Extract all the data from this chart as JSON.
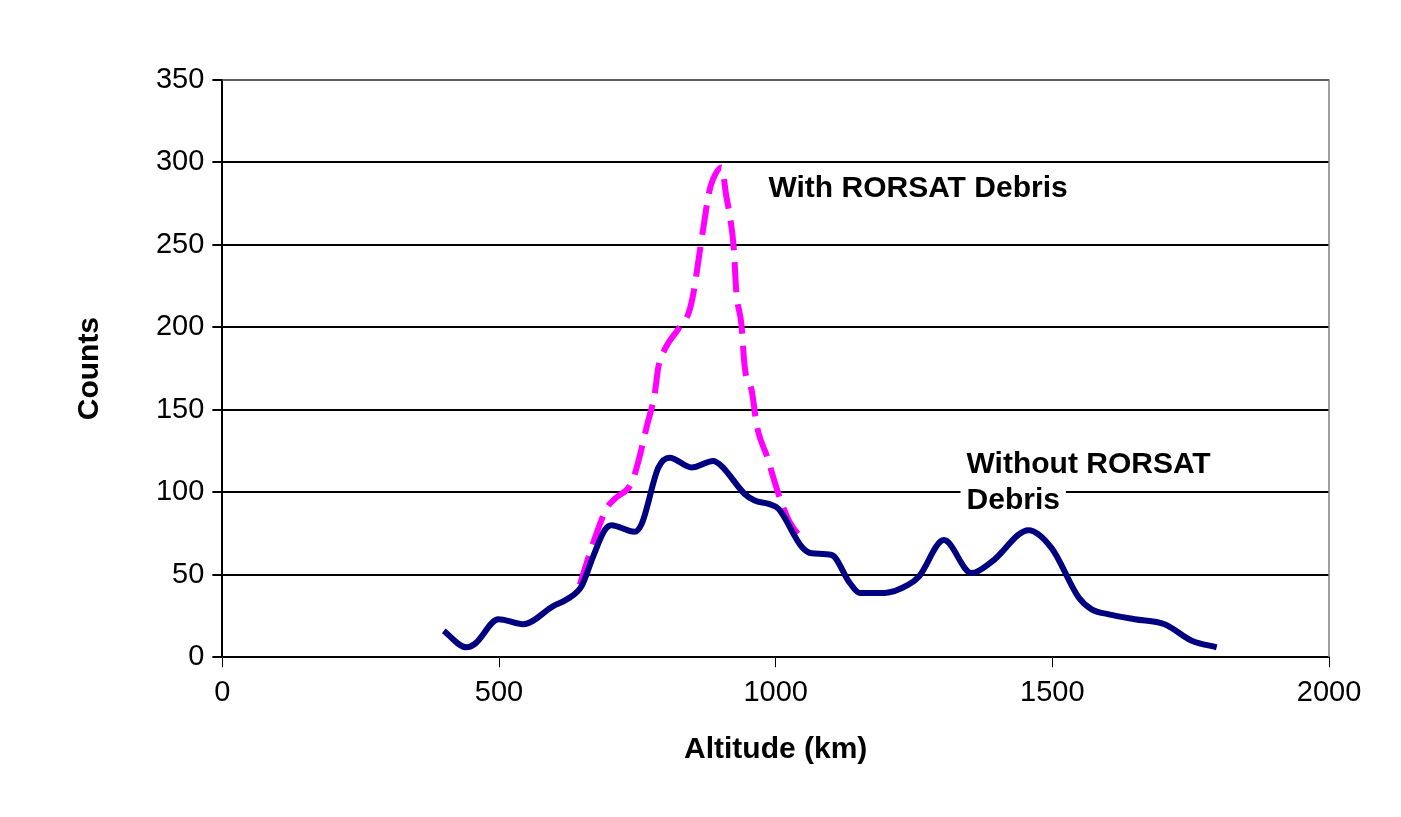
{
  "chart_data": {
    "type": "line",
    "xlabel": "Altitude (km)",
    "ylabel": "Counts",
    "xlim": [
      0,
      2000
    ],
    "xticks": [
      0,
      500,
      1000,
      1500,
      2000
    ],
    "ylim": [
      0,
      350
    ],
    "yticks": [
      0,
      50,
      100,
      150,
      200,
      250,
      300,
      350
    ],
    "grid": "y",
    "legend": false,
    "marker": "none",
    "series": [
      {
        "name": "Without RORSAT Debris",
        "color": "#000080",
        "line_style": "solid",
        "x": [
          400,
          441,
          456,
          499,
          544,
          598,
          622,
          649,
          670,
          691,
          703,
          745,
          758,
          788,
          808,
          848,
          887,
          902,
          944,
          962,
          987,
          1005,
          1047,
          1065,
          1101,
          1134,
          1152,
          1197,
          1240,
          1259,
          1304,
          1354,
          1391,
          1457,
          1499,
          1548,
          1571,
          1602,
          1649,
          1703,
          1752,
          1797
        ],
        "values": [
          16,
          6,
          8,
          23,
          20,
          31,
          35,
          43,
          61,
          77,
          80,
          76,
          81,
          115,
          121,
          115,
          119,
          116,
          99,
          95,
          93,
          90,
          67,
          63,
          62,
          45,
          39,
          39,
          44,
          49,
          71,
          51,
          58,
          77,
          66,
          36,
          29,
          26,
          23,
          20,
          10,
          6
        ]
      },
      {
        "name": "With RORSAT Debris",
        "color": "#ff00ff",
        "line_style": "dashed",
        "x": [
          646,
          673,
          694,
          709,
          740,
          752,
          767,
          781,
          788,
          800,
          824,
          843,
          852,
          861,
          870,
          879,
          887,
          902,
          911,
          917,
          924,
          929,
          938,
          944,
          957,
          966,
          984,
          1005,
          1025,
          1047
        ],
        "values": [
          44,
          72,
          90,
          96,
          106,
          119,
          140,
          159,
          176,
          187,
          199,
          209,
          222,
          242,
          262,
          281,
          290,
          297,
          279,
          268,
          249,
          221,
          202,
          176,
          161,
          140,
          122,
          99,
          82,
          72
        ]
      }
    ]
  }
}
